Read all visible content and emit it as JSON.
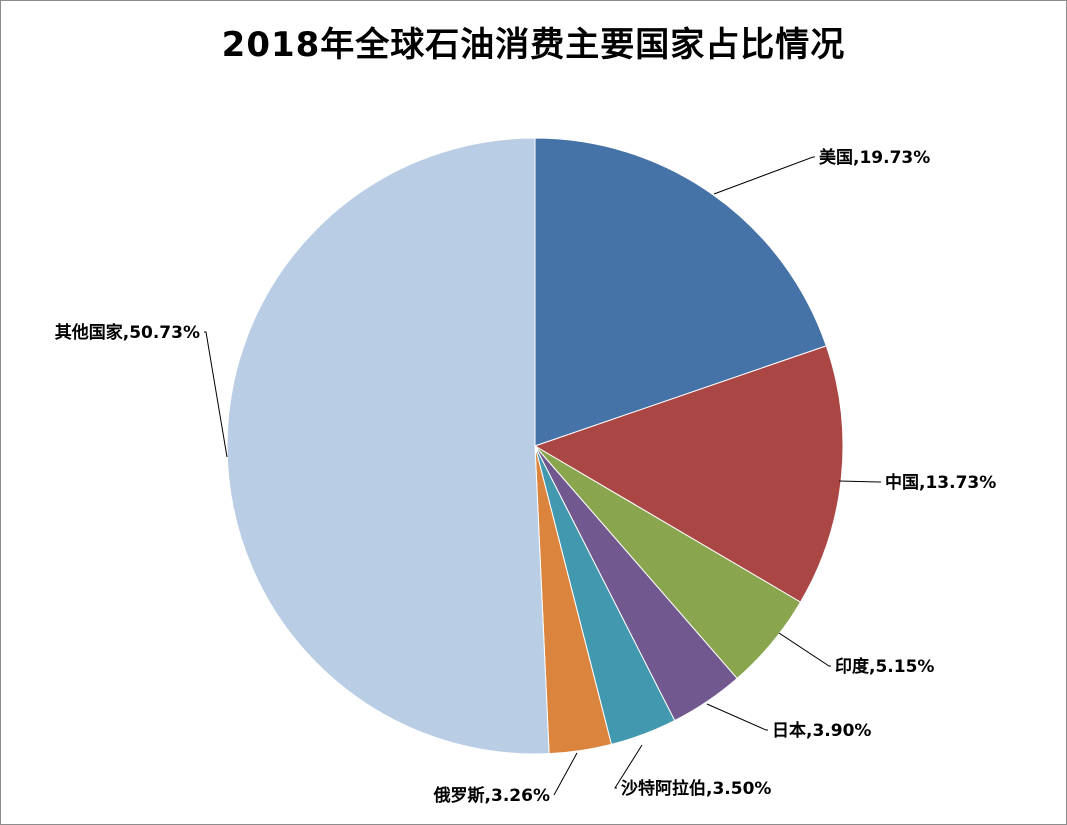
{
  "chart_data": {
    "type": "pie",
    "title": "2018年全球石油消费主要国家占比情况",
    "start_angle": "12 o'clock, clockwise",
    "slices": [
      {
        "label": "美国",
        "value": 19.73,
        "value_label": "19.73%",
        "color": "#4572a7"
      },
      {
        "label": "中国",
        "value": 13.73,
        "value_label": "13.73%",
        "color": "#aa4643"
      },
      {
        "label": "印度",
        "value": 5.15,
        "value_label": "5.15%",
        "color": "#89a54e"
      },
      {
        "label": "日本",
        "value": 3.9,
        "value_label": "3.90%",
        "color": "#71588f"
      },
      {
        "label": "沙特阿拉伯",
        "value": 3.5,
        "value_label": "3.50%",
        "color": "#4198af"
      },
      {
        "label": "俄罗斯",
        "value": 3.26,
        "value_label": "3.26%",
        "color": "#db843d"
      },
      {
        "label": "其他国家",
        "value": 50.73,
        "value_label": "50.73%",
        "color": "#b9cde5"
      }
    ]
  }
}
